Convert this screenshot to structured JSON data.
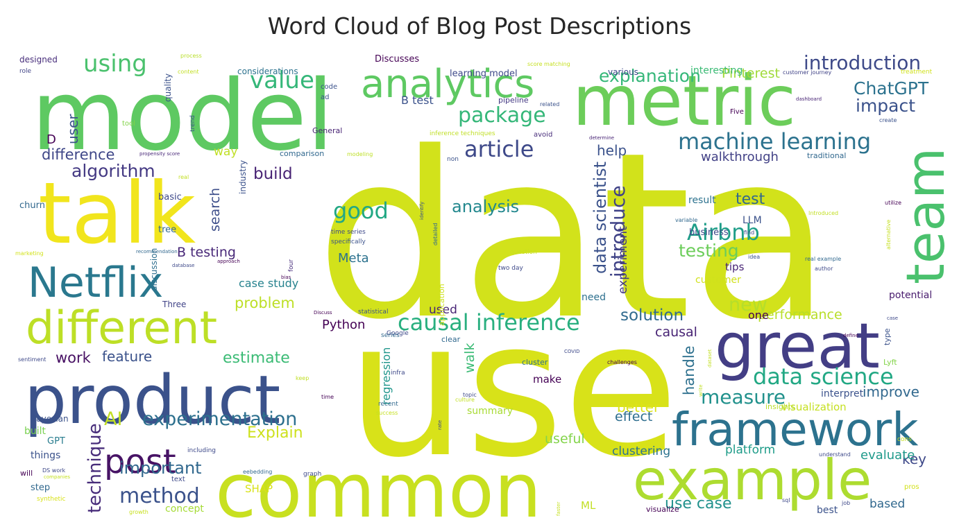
{
  "chart_data": {
    "type": "wordcloud",
    "title": "Word Cloud of Blog Post Descriptions",
    "background": "#ffffff",
    "colormap": "viridis",
    "words": [
      {
        "text": "data",
        "weight": 100,
        "color": "#d2e21b"
      },
      {
        "text": "use",
        "weight": 95,
        "color": "#d8e219"
      },
      {
        "text": "model",
        "weight": 55,
        "color": "#5ec962"
      },
      {
        "text": "talk",
        "weight": 48,
        "color": "#f1e51d"
      },
      {
        "text": "metric",
        "weight": 40,
        "color": "#6ccd5a"
      },
      {
        "text": "common",
        "weight": 42,
        "color": "#c8e020"
      },
      {
        "text": "product",
        "weight": 38,
        "color": "#3b528b"
      },
      {
        "text": "great",
        "weight": 34,
        "color": "#433e85"
      },
      {
        "text": "framework",
        "weight": 24,
        "color": "#2c728e"
      },
      {
        "text": "example",
        "weight": 32,
        "color": "#addc30"
      },
      {
        "text": "team",
        "weight": 30,
        "color": "#4ac16d"
      },
      {
        "text": "different",
        "weight": 26,
        "color": "#bddf26"
      },
      {
        "text": "Netflix",
        "weight": 23,
        "color": "#2a788e"
      },
      {
        "text": "analytics",
        "weight": 20,
        "color": "#5ec962"
      },
      {
        "text": "post",
        "weight": 18,
        "color": "#471365"
      },
      {
        "text": "causal inference",
        "weight": 12,
        "color": "#29af7f"
      },
      {
        "text": "data science",
        "weight": 12,
        "color": "#22a884"
      },
      {
        "text": "machine learning",
        "weight": 12,
        "color": "#2c728e"
      },
      {
        "text": "introduction",
        "weight": 11,
        "color": "#3e4a89"
      },
      {
        "text": "explanation",
        "weight": 10,
        "color": "#35b779"
      },
      {
        "text": "experimentation",
        "weight": 11,
        "color": "#2d708e"
      },
      {
        "text": "article",
        "weight": 12,
        "color": "#3e4989"
      },
      {
        "text": "using",
        "weight": 12,
        "color": "#4ac16d"
      },
      {
        "text": "value",
        "weight": 12,
        "color": "#35b779"
      },
      {
        "text": "package",
        "weight": 11,
        "color": "#35b779"
      },
      {
        "text": "Airbnb",
        "weight": 12,
        "color": "#1f9e89"
      },
      {
        "text": "good",
        "weight": 12,
        "color": "#22a884"
      },
      {
        "text": "measure",
        "weight": 11,
        "color": "#21918c"
      },
      {
        "text": "method",
        "weight": 11,
        "color": "#3b528b"
      },
      {
        "text": "data scientist",
        "weight": 10,
        "color": "#3b528b"
      },
      {
        "text": "introduce",
        "weight": 10,
        "color": "#404387"
      },
      {
        "text": "technique",
        "weight": 10,
        "color": "#472c7a"
      },
      {
        "text": "AI",
        "weight": 9,
        "color": "#c2df23"
      },
      {
        "text": "algorithm",
        "weight": 10,
        "color": "#443983"
      },
      {
        "text": "ChatGPT",
        "weight": 9,
        "color": "#2c728e"
      },
      {
        "text": "impact",
        "weight": 9,
        "color": "#3b528b"
      },
      {
        "text": "analysis",
        "weight": 9,
        "color": "#23888e"
      },
      {
        "text": "important",
        "weight": 9,
        "color": "#31688e"
      },
      {
        "text": "new",
        "weight": 9,
        "color": "#b5de2b"
      },
      {
        "text": "testing",
        "weight": 9,
        "color": "#6ccd5a"
      },
      {
        "text": "solution",
        "weight": 8,
        "color": "#306a8e"
      },
      {
        "text": "estimate",
        "weight": 8,
        "color": "#3bbb75"
      },
      {
        "text": "test",
        "weight": 8,
        "color": "#31688e"
      },
      {
        "text": "Explain",
        "weight": 8,
        "color": "#cde11d"
      },
      {
        "text": "difference",
        "weight": 8,
        "color": "#3f4788"
      },
      {
        "text": "build",
        "weight": 8,
        "color": "#482374"
      },
      {
        "text": "problem",
        "weight": 8,
        "color": "#bddf26"
      },
      {
        "text": "work",
        "weight": 8,
        "color": "#471063"
      },
      {
        "text": "feature",
        "weight": 7,
        "color": "#3b528b"
      },
      {
        "text": "performance",
        "weight": 7,
        "color": "#b8de29"
      },
      {
        "text": "Pinterest",
        "weight": 7,
        "color": "#a0da39"
      },
      {
        "text": "better",
        "weight": 7,
        "color": "#dde318"
      },
      {
        "text": "effect",
        "weight": 7,
        "color": "#2e6e8e"
      },
      {
        "text": "useful",
        "weight": 7,
        "color": "#84d44b"
      },
      {
        "text": "handle",
        "weight": 7,
        "color": "#2d708e"
      },
      {
        "text": "improve",
        "weight": 7,
        "color": "#31688e"
      },
      {
        "text": "walkthrough",
        "weight": 7,
        "color": "#424186"
      },
      {
        "text": "key",
        "weight": 7,
        "color": "#3e4989"
      },
      {
        "text": "evaluate",
        "weight": 6,
        "color": "#1f9a8a"
      },
      {
        "text": "help",
        "weight": 6,
        "color": "#3b528b"
      },
      {
        "text": "B testing",
        "weight": 6,
        "color": "#482878"
      },
      {
        "text": "user",
        "weight": 6,
        "color": "#3b528b"
      },
      {
        "text": "search",
        "weight": 6,
        "color": "#3d4e8a"
      },
      {
        "text": "way",
        "weight": 6,
        "color": "#c0df25"
      },
      {
        "text": "Python",
        "weight": 6,
        "color": "#440154"
      },
      {
        "text": "Meta",
        "weight": 6,
        "color": "#2c728e"
      },
      {
        "text": "walk",
        "weight": 6,
        "color": "#3bbb75"
      },
      {
        "text": "regression",
        "weight": 6,
        "color": "#1f968b"
      },
      {
        "text": "case study",
        "weight": 6,
        "color": "#26828e"
      },
      {
        "text": "clustering",
        "weight": 6,
        "color": "#2c738e"
      },
      {
        "text": "platform",
        "weight": 6,
        "color": "#1e9c89"
      },
      {
        "text": "use case",
        "weight": 6,
        "color": "#21918c"
      },
      {
        "text": "causal",
        "weight": 6,
        "color": "#482475"
      },
      {
        "text": "experiment",
        "weight": 6,
        "color": "#443a83"
      },
      {
        "text": "one",
        "weight": 6,
        "color": "#440154"
      },
      {
        "text": "tips",
        "weight": 5,
        "color": "#482475"
      },
      {
        "text": "customer",
        "weight": 5,
        "color": "#d0e11c"
      },
      {
        "text": "visualization",
        "weight": 5,
        "color": "#c5e021"
      },
      {
        "text": "interpret",
        "weight": 5,
        "color": "#3b528b"
      },
      {
        "text": "potential",
        "weight": 5,
        "color": "#481b6d"
      },
      {
        "text": "make",
        "weight": 5,
        "color": "#440154"
      },
      {
        "text": "summary",
        "weight": 5,
        "color": "#a8db34"
      },
      {
        "text": "based",
        "weight": 5,
        "color": "#31688e"
      },
      {
        "text": "result",
        "weight": 5,
        "color": "#2c728e"
      },
      {
        "text": "business",
        "weight": 5,
        "color": "#3e4989"
      },
      {
        "text": "LLM",
        "weight": 5,
        "color": "#3b528b"
      },
      {
        "text": "SHAP",
        "weight": 5,
        "color": "#d8e219"
      },
      {
        "text": "ML",
        "weight": 5,
        "color": "#c2df23"
      },
      {
        "text": "concept",
        "weight": 5,
        "color": "#a5db36"
      },
      {
        "text": "best",
        "weight": 5,
        "color": "#3b528b"
      },
      {
        "text": "need",
        "weight": 5,
        "color": "#2d708e"
      },
      {
        "text": "used",
        "weight": 5,
        "color": "#482576"
      },
      {
        "text": "GPT",
        "weight": 4,
        "color": "#287c8e"
      },
      {
        "text": "things",
        "weight": 4,
        "color": "#3b528b"
      },
      {
        "text": "step",
        "weight": 4,
        "color": "#31688e"
      },
      {
        "text": "built",
        "weight": 4,
        "color": "#7ad151"
      },
      {
        "text": "basic",
        "weight": 4,
        "color": "#3e4989"
      },
      {
        "text": "tree",
        "weight": 4,
        "color": "#31688e"
      },
      {
        "text": "churn",
        "weight": 4,
        "color": "#31688e"
      },
      {
        "text": "Three",
        "weight": 4,
        "color": "#414487"
      },
      {
        "text": "discussion",
        "weight": 4,
        "color": "#2e6e8e"
      },
      {
        "text": "industry",
        "weight": 4,
        "color": "#3b528b"
      },
      {
        "text": "interesting",
        "weight": 5,
        "color": "#3bbb75"
      },
      {
        "text": "Discusses",
        "weight": 4,
        "color": "#440154"
      },
      {
        "text": "learning model",
        "weight": 4,
        "color": "#3e4989"
      },
      {
        "text": "B test",
        "weight": 4,
        "color": "#3b528b"
      },
      {
        "text": "D",
        "weight": 4,
        "color": "#440154"
      },
      {
        "text": "considerations",
        "weight": 3,
        "color": "#2c728e"
      },
      {
        "text": "designed",
        "weight": 3,
        "color": "#472d7b"
      },
      {
        "text": "quality",
        "weight": 3,
        "color": "#3b528b"
      },
      {
        "text": "various",
        "weight": 3,
        "color": "#3e4989"
      },
      {
        "text": "pipeline",
        "weight": 3,
        "color": "#443983"
      },
      {
        "text": "traditional",
        "weight": 3,
        "color": "#31688e"
      },
      {
        "text": "Five",
        "weight": 3,
        "color": "#440154"
      },
      {
        "text": "comparison",
        "weight": 3,
        "color": "#31688e"
      },
      {
        "text": "General",
        "weight": 3,
        "color": "#482374"
      },
      {
        "text": "code",
        "weight": 3,
        "color": "#3b528b"
      },
      {
        "text": "ad",
        "weight": 3,
        "color": "#3b528b"
      },
      {
        "text": "avoid",
        "weight": 3,
        "color": "#472c7a"
      },
      {
        "text": "Google",
        "weight": 3,
        "color": "#3e4989"
      },
      {
        "text": "clear",
        "weight": 3,
        "color": "#31688e"
      },
      {
        "text": "cluster",
        "weight": 3,
        "color": "#2e6e8e"
      },
      {
        "text": "application",
        "weight": 3,
        "color": "#cde11d"
      },
      {
        "text": "specifically",
        "weight": 2,
        "color": "#3b528b"
      },
      {
        "text": "time series",
        "weight": 2,
        "color": "#3e4989"
      },
      {
        "text": "Bayesian",
        "weight": 3,
        "color": "#3b528b"
      },
      {
        "text": "will",
        "weight": 3,
        "color": "#440154"
      },
      {
        "text": "Lyft",
        "weight": 3,
        "color": "#84d44b"
      },
      {
        "text": "type",
        "weight": 3,
        "color": "#3b528b"
      },
      {
        "text": "insights",
        "weight": 3,
        "color": "#b8de29"
      },
      {
        "text": "role",
        "weight": 2,
        "color": "#414487"
      },
      {
        "text": "content",
        "weight": 2,
        "color": "#c2df23"
      },
      {
        "text": "process",
        "weight": 2,
        "color": "#b8de29"
      },
      {
        "text": "score matching",
        "weight": 2,
        "color": "#c5e021"
      },
      {
        "text": "customer journey",
        "weight": 2,
        "color": "#404387"
      },
      {
        "text": "treatment",
        "weight": 2,
        "color": "#d0e11c"
      },
      {
        "text": "related",
        "weight": 2,
        "color": "#3b528b"
      },
      {
        "text": "dashboard",
        "weight": 2,
        "color": "#482475"
      },
      {
        "text": "create",
        "weight": 2,
        "color": "#3b528b"
      },
      {
        "text": "tool",
        "weight": 2,
        "color": "#84d44b"
      },
      {
        "text": "trend",
        "weight": 2,
        "color": "#3b528b"
      },
      {
        "text": "inference techniques",
        "weight": 2,
        "color": "#c0df25"
      },
      {
        "text": "determine",
        "weight": 2,
        "color": "#482475"
      },
      {
        "text": "propensity score",
        "weight": 2,
        "color": "#482878"
      },
      {
        "text": "modeling",
        "weight": 2,
        "color": "#bddf26"
      },
      {
        "text": "non",
        "weight": 2,
        "color": "#3b528b"
      },
      {
        "text": "real",
        "weight": 2,
        "color": "#c2df23"
      },
      {
        "text": "detailed",
        "weight": 2,
        "color": "#31688e"
      },
      {
        "text": "identify",
        "weight": 2,
        "color": "#3b528b"
      },
      {
        "text": "Introduced",
        "weight": 2,
        "color": "#c2df23"
      },
      {
        "text": "utilize",
        "weight": 2,
        "color": "#440154"
      },
      {
        "text": "variable",
        "weight": 2,
        "color": "#31688e"
      },
      {
        "text": "find",
        "weight": 2,
        "color": "#3e4989"
      },
      {
        "text": "marketing",
        "weight": 2,
        "color": "#d2e21b"
      },
      {
        "text": "recommendation",
        "weight": 2,
        "color": "#31688e"
      },
      {
        "text": "approach",
        "weight": 2,
        "color": "#440154"
      },
      {
        "text": "database",
        "weight": 2,
        "color": "#3e4989"
      },
      {
        "text": "four",
        "weight": 2,
        "color": "#472d7b"
      },
      {
        "text": "bias",
        "weight": 2,
        "color": "#440154"
      },
      {
        "text": "question",
        "weight": 2,
        "color": "#c5e021"
      },
      {
        "text": "two day",
        "weight": 2,
        "color": "#3e4989"
      },
      {
        "text": "idea",
        "weight": 2,
        "color": "#3b528b"
      },
      {
        "text": "real example",
        "weight": 2,
        "color": "#31688e"
      },
      {
        "text": "author",
        "weight": 2,
        "color": "#3e4989"
      },
      {
        "text": "alternative",
        "weight": 2,
        "color": "#c5e021"
      },
      {
        "text": "Discuss",
        "weight": 2,
        "color": "#440154"
      },
      {
        "text": "statistical",
        "weight": 2,
        "color": "#3b528b"
      },
      {
        "text": "case",
        "weight": 2,
        "color": "#3e4989"
      },
      {
        "text": "define",
        "weight": 2,
        "color": "#440154"
      },
      {
        "text": "sentiment",
        "weight": 2,
        "color": "#3e4989"
      },
      {
        "text": "series",
        "weight": 2,
        "color": "#31688e"
      },
      {
        "text": "COVID",
        "weight": 2,
        "color": "#3e4989"
      },
      {
        "text": "challenges",
        "weight": 2,
        "color": "#440154"
      },
      {
        "text": "dataset",
        "weight": 2,
        "color": "#c2df23"
      },
      {
        "text": "write",
        "weight": 2,
        "color": "#c0df25"
      },
      {
        "text": "keep",
        "weight": 2,
        "color": "#c0df25"
      },
      {
        "text": "infra",
        "weight": 2,
        "color": "#3e4989"
      },
      {
        "text": "time",
        "weight": 2,
        "color": "#440154"
      },
      {
        "text": "topic",
        "weight": 2,
        "color": "#3e4989"
      },
      {
        "text": "culture",
        "weight": 2,
        "color": "#c2df23"
      },
      {
        "text": "recent",
        "weight": 2,
        "color": "#31688e"
      },
      {
        "text": "success",
        "weight": 2,
        "color": "#c5e021"
      },
      {
        "text": "rate",
        "weight": 2,
        "color": "#3e4989"
      },
      {
        "text": "including",
        "weight": 2,
        "color": "#3e4989"
      },
      {
        "text": "DS work",
        "weight": 2,
        "color": "#3e4989"
      },
      {
        "text": "companies",
        "weight": 2,
        "color": "#c5e021"
      },
      {
        "text": "synthetic",
        "weight": 2,
        "color": "#d8e219"
      },
      {
        "text": "eebedding",
        "weight": 2,
        "color": "#31688e"
      },
      {
        "text": "graph",
        "weight": 2,
        "color": "#3e4989"
      },
      {
        "text": "text",
        "weight": 2,
        "color": "#3e4989"
      },
      {
        "text": "growth",
        "weight": 2,
        "color": "#c8e020"
      },
      {
        "text": "understand",
        "weight": 2,
        "color": "#3e4989"
      },
      {
        "text": "cons",
        "weight": 2,
        "color": "#c8e020"
      },
      {
        "text": "pros",
        "weight": 2,
        "color": "#d2e21b"
      },
      {
        "text": "faster",
        "weight": 2,
        "color": "#c5e021"
      },
      {
        "text": "sql",
        "weight": 2,
        "color": "#3e4989"
      },
      {
        "text": "job",
        "weight": 2,
        "color": "#3e4989"
      },
      {
        "text": "visualize",
        "weight": 2,
        "color": "#440154"
      }
    ]
  }
}
